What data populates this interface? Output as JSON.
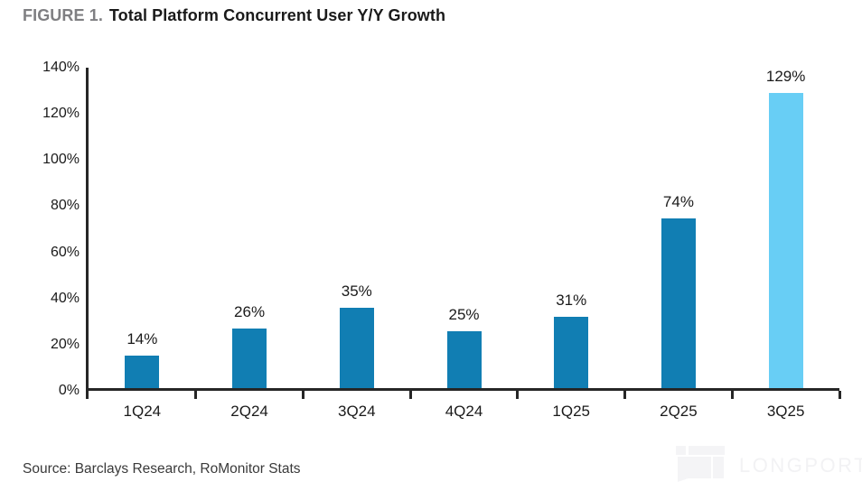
{
  "title": {
    "figure_label": "FIGURE 1.",
    "text": "Total Platform Concurrent User Y/Y Growth"
  },
  "source_note": "Source: Barclays Research, RoMonitor Stats",
  "watermark": {
    "text": "LONGPORT"
  },
  "colors": {
    "bar_primary": "#117EB3",
    "bar_highlight": "#68CEF5",
    "axis": "#262626",
    "figure_label": "#7F7F82",
    "title_text": "#1A1A1A",
    "tick_text": "#1A1A1A",
    "source_text": "#3A3A3A",
    "watermark": "#F4F4F6"
  },
  "chart_data": {
    "type": "bar",
    "title": "Total Platform Concurrent User Y/Y Growth",
    "categories": [
      "1Q24",
      "2Q24",
      "3Q24",
      "4Q24",
      "1Q25",
      "2Q25",
      "3Q25"
    ],
    "values": [
      14,
      26,
      35,
      25,
      31,
      74,
      129
    ],
    "data_labels": [
      "14%",
      "26%",
      "35%",
      "25%",
      "31%",
      "74%",
      "129%"
    ],
    "highlight_index": 6,
    "xlabel": "",
    "ylabel": "",
    "ylim": [
      0,
      140
    ],
    "ytick_values": [
      0,
      20,
      40,
      60,
      80,
      100,
      120,
      140
    ],
    "ytick_labels": [
      "0%",
      "20%",
      "40%",
      "60%",
      "80%",
      "100%",
      "120%",
      "140%"
    ],
    "grid": false,
    "legend": "none"
  }
}
